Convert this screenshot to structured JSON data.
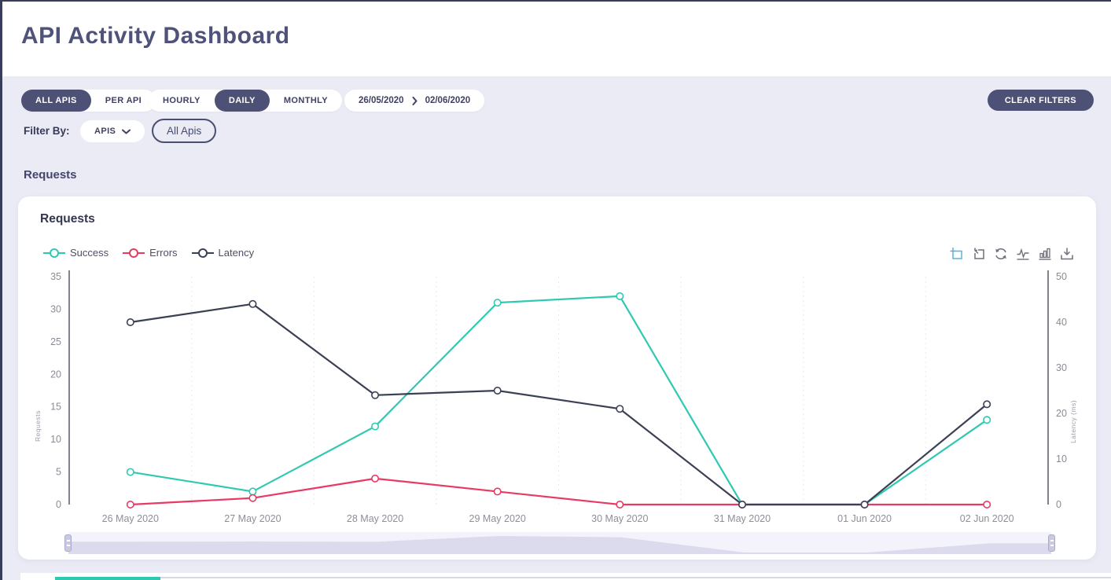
{
  "window": {
    "title": "API Activity Dashboard"
  },
  "filters": {
    "api_scope": {
      "options": [
        "ALL APIS",
        "PER API"
      ],
      "selected": "ALL APIS"
    },
    "granularity": {
      "options": [
        "HOURLY",
        "DAILY",
        "MONTHLY"
      ],
      "selected": "DAILY"
    },
    "date_range": {
      "from": "26/05/2020",
      "to": "02/06/2020"
    },
    "clear_label": "CLEAR FILTERS",
    "filter_by_label": "Filter By:",
    "filter_dropdown": "APIS",
    "filter_chip": "All Apis"
  },
  "section": {
    "title": "Requests"
  },
  "card": {
    "title": "Requests"
  },
  "toolbar": {
    "icons": [
      "zoom-select",
      "zoom-reset",
      "restore",
      "line-chart",
      "bar-chart",
      "download"
    ]
  },
  "chart_data": {
    "type": "line",
    "categories": [
      "26 May 2020",
      "27 May 2020",
      "28 May 2020",
      "29 May 2020",
      "30 May 2020",
      "31 May 2020",
      "01 Jun 2020",
      "02 Jun 2020"
    ],
    "series": [
      {
        "name": "Success",
        "color": "#2fc9b2",
        "axis": "left",
        "values": [
          5,
          2,
          12,
          31,
          32,
          0,
          0,
          13
        ]
      },
      {
        "name": "Errors",
        "color": "#e93a63",
        "axis": "left",
        "values": [
          0,
          1,
          4,
          2,
          0,
          0,
          0,
          0
        ]
      },
      {
        "name": "Latency",
        "color": "#3c4054",
        "axis": "right",
        "values": [
          40,
          44,
          24,
          25,
          21,
          0,
          0,
          22
        ]
      }
    ],
    "left_axis": {
      "min": 0,
      "max": 35,
      "step": 5,
      "title": "Requests"
    },
    "right_axis": {
      "min": 0,
      "max": 50,
      "step": 10,
      "title": "Latency (ms)"
    },
    "legend_position": "top-left",
    "grid": "vertical-dotted",
    "marker": "open-circle"
  }
}
